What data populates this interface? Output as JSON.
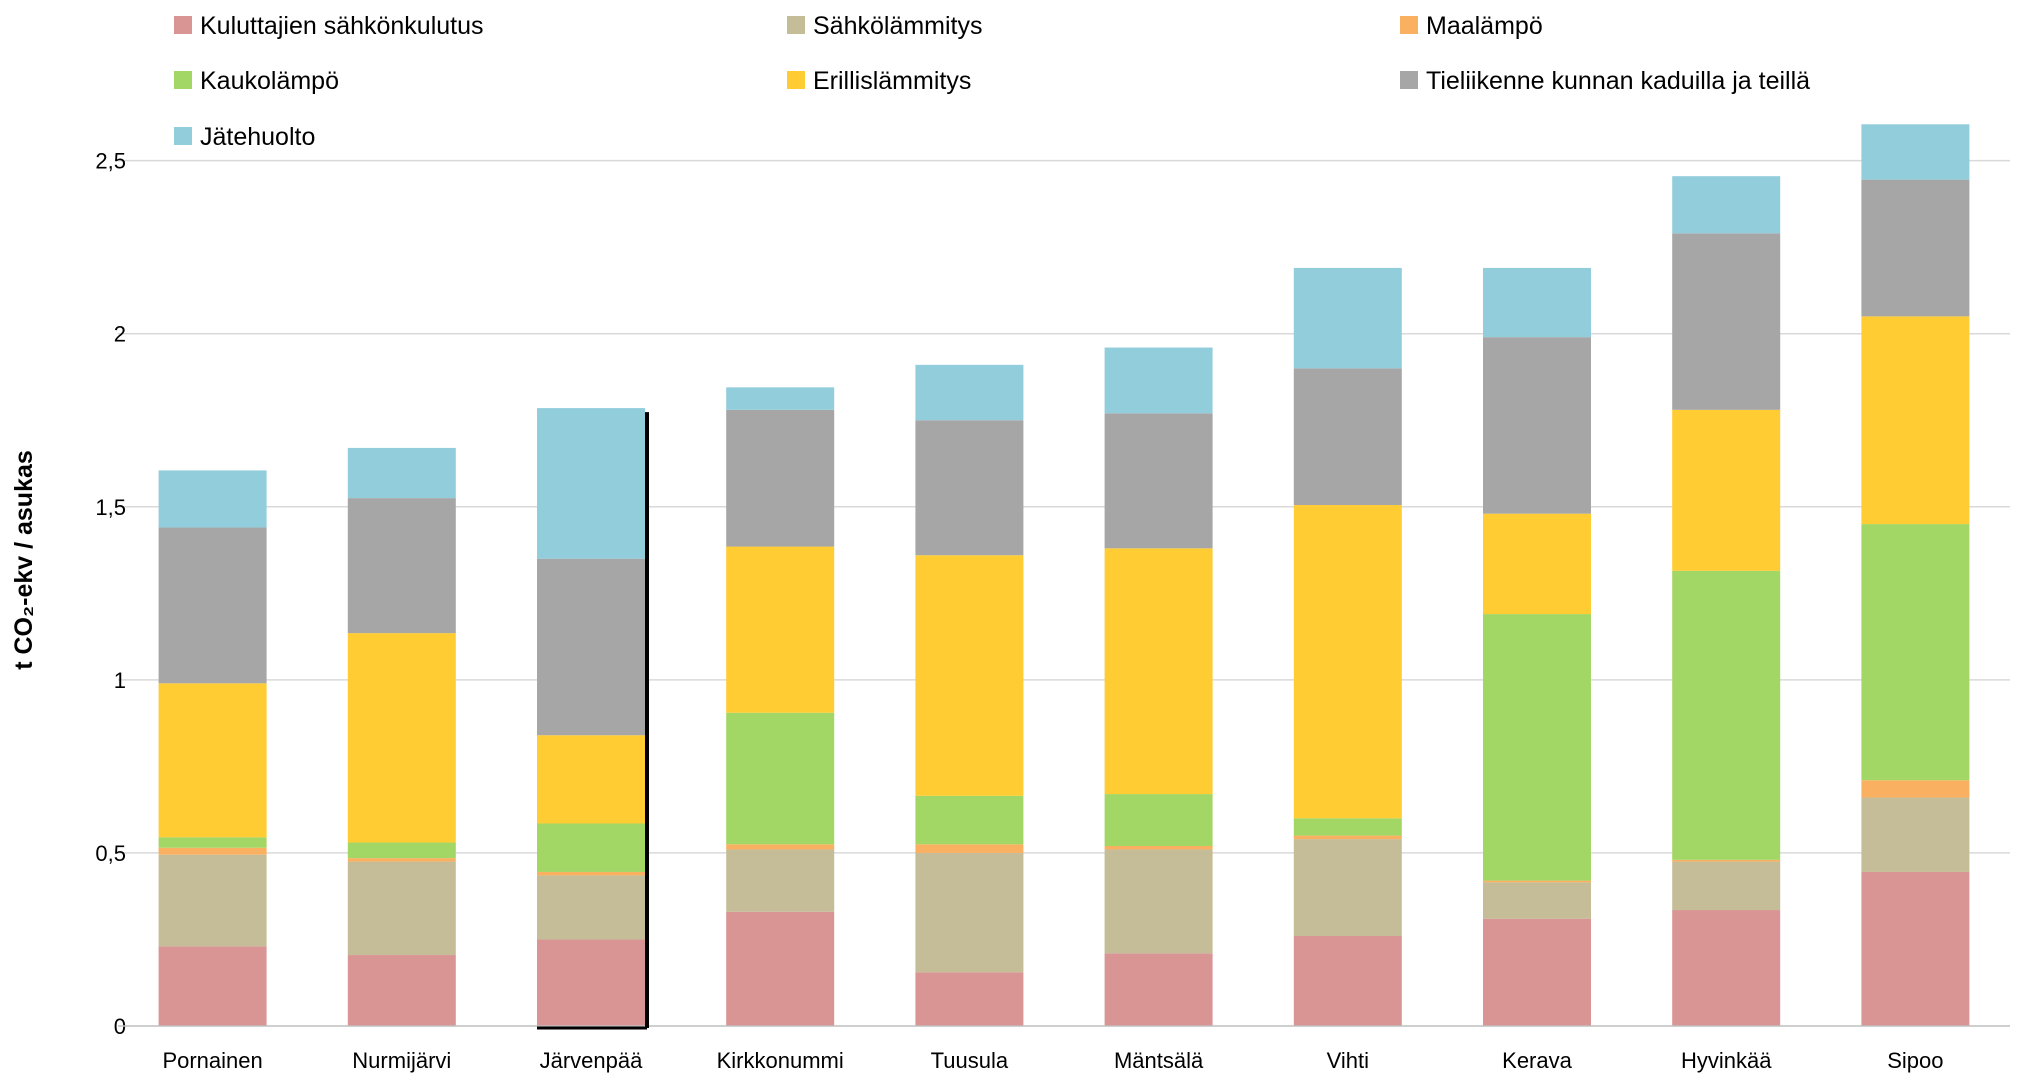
{
  "chart_data": {
    "type": "bar",
    "stacked": true,
    "ylabel": "t CO₂-ekv / asukas",
    "ylim": [
      0,
      2.6
    ],
    "yticks": [
      0,
      0.5,
      1,
      1.5,
      2,
      2.5
    ],
    "ytick_labels": [
      "0",
      "0,5",
      "1",
      "1,5",
      "2",
      "2,5"
    ],
    "grid": true,
    "legend_position": "top",
    "categories": [
      "Pornainen",
      "Nurmijärvi",
      "Järvenpää",
      "Kirkkonummi",
      "Tuusula",
      "Mäntsälä",
      "Vihti",
      "Kerava",
      "Hyvinkää",
      "Sipoo"
    ],
    "series": [
      {
        "name": "Kuluttajien sähkönkulutus",
        "color": "#D99594",
        "values": [
          0.23,
          0.205,
          0.25,
          0.33,
          0.155,
          0.21,
          0.26,
          0.31,
          0.335,
          0.445
        ]
      },
      {
        "name": "Sähkölämmitys",
        "color": "#C4BD97",
        "values": [
          0.265,
          0.27,
          0.185,
          0.18,
          0.345,
          0.3,
          0.28,
          0.105,
          0.14,
          0.215
        ]
      },
      {
        "name": "Maalämpö",
        "color": "#FAB061",
        "values": [
          0.02,
          0.01,
          0.01,
          0.015,
          0.025,
          0.01,
          0.01,
          0.005,
          0.005,
          0.05
        ]
      },
      {
        "name": "Kaukolämpö",
        "color": "#A2D665",
        "values": [
          0.03,
          0.045,
          0.14,
          0.38,
          0.14,
          0.15,
          0.05,
          0.77,
          0.835,
          0.74
        ]
      },
      {
        "name": "Erillislämmitys",
        "color": "#FFCC33",
        "values": [
          0.445,
          0.605,
          0.255,
          0.48,
          0.695,
          0.71,
          0.905,
          0.29,
          0.465,
          0.6
        ]
      },
      {
        "name": "Tieliikenne kunnan kaduilla ja teillä",
        "color": "#A6A6A6",
        "values": [
          0.45,
          0.39,
          0.51,
          0.395,
          0.39,
          0.39,
          0.395,
          0.51,
          0.51,
          0.395
        ]
      },
      {
        "name": "Jätehuolto",
        "color": "#92CDDC",
        "values": [
          0.165,
          0.145,
          0.435,
          0.065,
          0.16,
          0.19,
          0.29,
          0.2,
          0.165,
          0.16
        ]
      }
    ]
  }
}
